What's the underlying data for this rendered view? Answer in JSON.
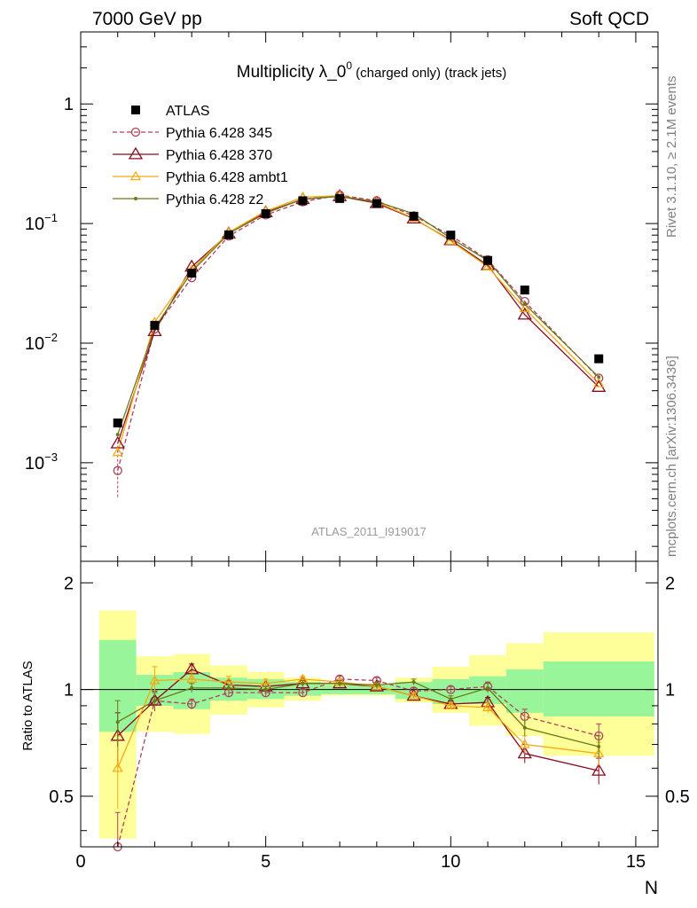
{
  "header": {
    "energy_label": "7000 GeV pp",
    "process_label": "Soft QCD"
  },
  "side": {
    "rivet_label": "Rivet 3.1.10, ≥ 2.1M events",
    "site_label": "mcplots.cern.ch [arXiv:1306.3436]"
  },
  "chart_data": {
    "type": "line",
    "title": "Multiplicity λ_0⁰ (charged only) (track jets)",
    "title_main": "Multiplicity λ_0",
    "title_sup": "0",
    "title_rest": " (charged only) (track jets)",
    "analysis_label": "ATLAS_2011_I919017",
    "xlabel": "N",
    "ylabel_ratio": "Ratio to ATLAS",
    "xlim": [
      0,
      15.6
    ],
    "ylim_main": [
      0.00015,
      4
    ],
    "yscale_main": "log",
    "ylim_ratio": [
      0.36,
      2.3
    ],
    "yscale_ratio": "log",
    "x_ticks": [
      "0",
      "5",
      "10",
      "15"
    ],
    "y_ticks_main": [
      "10⁻³",
      "10⁻²",
      "10⁻¹",
      "1"
    ],
    "y_ticks_ratio": [
      "0.5",
      "1",
      "2"
    ],
    "legend_position": "top-left",
    "reference": {
      "name": "ATLAS",
      "color": "#000000",
      "x": [
        1,
        2,
        3,
        4,
        5,
        6,
        7,
        8,
        9,
        10,
        11,
        12,
        14
      ],
      "y": [
        0.00215,
        0.0141,
        0.0385,
        0.0805,
        0.121,
        0.155,
        0.162,
        0.147,
        0.115,
        0.08,
        0.0491,
        0.0278,
        0.0074
      ]
    },
    "uncertainty_bands": {
      "edges": [
        0.5,
        1.5,
        2.5,
        3.5,
        4.5,
        5.5,
        6.5,
        7.5,
        8.5,
        9.5,
        10.5,
        11.5,
        12.5,
        15.5
      ],
      "stat": [
        [
          0.76,
          1.38
        ],
        [
          0.9,
          1.1
        ],
        [
          0.88,
          1.12
        ],
        [
          0.93,
          1.08
        ],
        [
          0.94,
          1.07
        ],
        [
          0.96,
          1.05
        ],
        [
          0.97,
          1.03
        ],
        [
          0.97,
          1.03
        ],
        [
          0.94,
          1.05
        ],
        [
          0.91,
          1.07
        ],
        [
          0.91,
          1.09
        ],
        [
          0.86,
          1.14
        ],
        [
          0.84,
          1.2
        ]
      ],
      "total": [
        [
          0.38,
          1.67
        ],
        [
          0.76,
          1.24
        ],
        [
          0.75,
          1.26
        ],
        [
          0.85,
          1.17
        ],
        [
          0.89,
          1.12
        ],
        [
          0.93,
          1.08
        ],
        [
          0.96,
          1.04
        ],
        [
          0.96,
          1.04
        ],
        [
          0.92,
          1.08
        ],
        [
          0.86,
          1.16
        ],
        [
          0.79,
          1.25
        ],
        [
          0.74,
          1.35
        ],
        [
          0.65,
          1.45
        ]
      ]
    },
    "series": [
      {
        "name": "Pythia 6.428 345",
        "color": "#b0405a",
        "dash": "dashed",
        "marker": "open-circle",
        "x": [
          1,
          2,
          3,
          4,
          5,
          6,
          7,
          8,
          9,
          10,
          11,
          12,
          14
        ],
        "y": [
          0.00086,
          0.0131,
          0.0352,
          0.0785,
          0.118,
          0.152,
          0.173,
          0.155,
          0.116,
          0.0795,
          0.0498,
          0.0223,
          0.0051
        ],
        "ratio": [
          0.36,
          0.93,
          0.91,
          0.98,
          0.98,
          0.98,
          1.07,
          1.06,
          0.99,
          1.0,
          1.02,
          0.84,
          0.74
        ],
        "ratio_err": [
          0.09,
          0.05,
          0.03,
          0.02,
          0.02,
          0.02,
          0.02,
          0.02,
          0.02,
          0.02,
          0.03,
          0.04,
          0.06
        ]
      },
      {
        "name": "Pythia 6.428 370",
        "color": "#8b0a1e",
        "dash": "solid",
        "marker": "open-triangle",
        "x": [
          1,
          2,
          3,
          4,
          5,
          6,
          7,
          8,
          9,
          10,
          11,
          12,
          14
        ],
        "y": [
          0.00145,
          0.0126,
          0.0435,
          0.0825,
          0.124,
          0.16,
          0.169,
          0.148,
          0.11,
          0.0725,
          0.0448,
          0.0173,
          0.0043
        ],
        "ratio": [
          0.74,
          0.93,
          1.14,
          1.03,
          1.02,
          1.04,
          1.04,
          1.02,
          0.96,
          0.91,
          0.92,
          0.66,
          0.59
        ],
        "ratio_err": [
          0.12,
          0.06,
          0.04,
          0.03,
          0.02,
          0.02,
          0.02,
          0.02,
          0.02,
          0.02,
          0.03,
          0.04,
          0.05
        ]
      },
      {
        "name": "Pythia 6.428 ambt1",
        "color": "#f4a90f",
        "dash": "solid",
        "marker": "open-triangle-small",
        "x": [
          1,
          2,
          3,
          4,
          5,
          6,
          7,
          8,
          9,
          10,
          11,
          12,
          14
        ],
        "y": [
          0.00122,
          0.015,
          0.041,
          0.0845,
          0.127,
          0.166,
          0.171,
          0.151,
          0.111,
          0.0715,
          0.0435,
          0.0195,
          0.0046
        ],
        "ratio": [
          0.6,
          1.06,
          1.07,
          1.05,
          1.04,
          1.07,
          1.05,
          1.02,
          0.96,
          0.9,
          0.89,
          0.7,
          0.66
        ],
        "ratio_err": [
          0.14,
          0.1,
          0.05,
          0.04,
          0.03,
          0.02,
          0.02,
          0.02,
          0.02,
          0.02,
          0.03,
          0.04,
          0.05
        ]
      },
      {
        "name": "Pythia 6.428 z2",
        "color": "#6b7a1a",
        "dash": "solid",
        "marker": "small-dot",
        "x": [
          1,
          2,
          3,
          4,
          5,
          6,
          7,
          8,
          9,
          10,
          11,
          12,
          14
        ],
        "y": [
          0.00172,
          0.0134,
          0.0395,
          0.0825,
          0.122,
          0.16,
          0.169,
          0.152,
          0.121,
          0.0755,
          0.0491,
          0.0212,
          0.0052
        ],
        "ratio": [
          0.81,
          0.93,
          1.01,
          1.01,
          1.0,
          1.04,
          1.04,
          1.03,
          1.05,
          0.94,
          1.01,
          0.78,
          0.69
        ],
        "ratio_err": [
          0.12,
          0.05,
          0.03,
          0.02,
          0.02,
          0.02,
          0.02,
          0.02,
          0.02,
          0.02,
          0.03,
          0.04,
          0.05
        ]
      }
    ]
  }
}
